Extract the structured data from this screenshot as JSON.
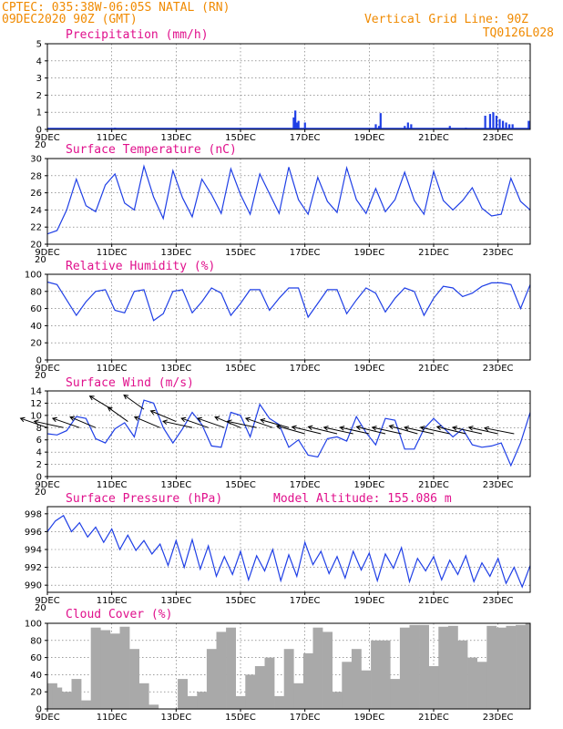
{
  "header": {
    "line1_left": "CPTEC:   035:38W-06:05S  NATAL (RN)",
    "line2_left": "09DEC2020 90Z (GMT)",
    "line2_right": "Vertical Grid Line: 90Z",
    "line3_right": "TQ0126L028"
  },
  "colors": {
    "line": "#1f3fe6",
    "precip_bar": "#1f3fe6",
    "cloud_fill": "#a9a9a9",
    "title": "#e0108c",
    "header": "#f08a00",
    "wind_arrow": "#000000"
  },
  "x_axis": {
    "tick_labels": [
      "9DEC",
      "11DEC",
      "13DEC",
      "15DEC",
      "17DEC",
      "19DEC",
      "21DEC",
      "23DEC"
    ],
    "tick_days": [
      0,
      2,
      4,
      6,
      8,
      10,
      12,
      14
    ],
    "day_range": [
      0,
      15
    ],
    "minor_cut_label": "20"
  },
  "chart_data": [
    {
      "type": "bar",
      "title": "Precipitation (mm/h)",
      "ylim": [
        0,
        5
      ],
      "yticks": [
        0,
        1,
        2,
        3,
        4,
        5
      ],
      "x_days": [
        2.1,
        7.65,
        7.7,
        7.75,
        7.8,
        8.0,
        10.2,
        10.3,
        10.35,
        11.1,
        11.2,
        11.3,
        12.5,
        13.0,
        13.6,
        13.75,
        13.85,
        13.95,
        14.05,
        14.15,
        14.25,
        14.35,
        14.45,
        14.95
      ],
      "values": [
        0.1,
        0.7,
        1.1,
        0.4,
        0.5,
        0.4,
        0.3,
        0.2,
        0.95,
        0.2,
        0.4,
        0.3,
        0.2,
        0.1,
        0.8,
        0.9,
        1.0,
        0.8,
        0.6,
        0.5,
        0.4,
        0.3,
        0.3,
        0.5
      ]
    },
    {
      "type": "line",
      "title": "Surface Temperature (nC)",
      "ylim": [
        20,
        30
      ],
      "yticks": [
        20,
        22,
        24,
        26,
        28,
        30
      ],
      "x_days": [
        0,
        0.3,
        0.6,
        0.9,
        1.2,
        1.5,
        1.8,
        2.1,
        2.4,
        2.7,
        3.0,
        3.3,
        3.6,
        3.9,
        4.2,
        4.5,
        4.8,
        5.1,
        5.4,
        5.7,
        6.0,
        6.3,
        6.6,
        6.9,
        7.2,
        7.5,
        7.8,
        8.1,
        8.4,
        8.7,
        9.0,
        9.3,
        9.6,
        9.9,
        10.2,
        10.5,
        10.8,
        11.1,
        11.4,
        11.7,
        12.0,
        12.3,
        12.6,
        12.9,
        13.2,
        13.5,
        13.8,
        14.1,
        14.4,
        14.7,
        15.0
      ],
      "values": [
        21.2,
        21.6,
        24.0,
        27.6,
        24.5,
        23.8,
        26.9,
        28.2,
        24.8,
        24.0,
        29.1,
        25.5,
        23.0,
        28.6,
        25.4,
        23.2,
        27.6,
        25.8,
        23.6,
        28.8,
        25.8,
        23.5,
        28.2,
        25.9,
        23.6,
        29.0,
        25.2,
        23.5,
        27.8,
        25.0,
        23.7,
        28.9,
        25.2,
        23.6,
        26.5,
        23.8,
        25.2,
        28.4,
        25.1,
        23.5,
        28.5,
        25.1,
        24.0,
        25.1,
        26.6,
        24.2,
        23.3,
        23.5,
        27.7,
        25.0,
        24.0
      ]
    },
    {
      "type": "line",
      "title": "Relative Humidity (%)",
      "ylim": [
        0,
        100
      ],
      "yticks": [
        0,
        20,
        40,
        60,
        80,
        100
      ],
      "x_days": [
        0,
        0.3,
        0.6,
        0.9,
        1.2,
        1.5,
        1.8,
        2.1,
        2.4,
        2.7,
        3.0,
        3.3,
        3.6,
        3.9,
        4.2,
        4.5,
        4.8,
        5.1,
        5.4,
        5.7,
        6.0,
        6.3,
        6.6,
        6.9,
        7.2,
        7.5,
        7.8,
        8.1,
        8.4,
        8.7,
        9.0,
        9.3,
        9.6,
        9.9,
        10.2,
        10.5,
        10.8,
        11.1,
        11.4,
        11.7,
        12.0,
        12.3,
        12.6,
        12.9,
        13.2,
        13.5,
        13.8,
        14.1,
        14.4,
        14.7,
        15.0
      ],
      "values": [
        91,
        88,
        70,
        52,
        68,
        80,
        82,
        58,
        55,
        80,
        82,
        46,
        54,
        80,
        82,
        55,
        68,
        84,
        78,
        52,
        66,
        82,
        82,
        58,
        72,
        84,
        84,
        50,
        66,
        82,
        82,
        54,
        70,
        84,
        78,
        56,
        72,
        84,
        80,
        52,
        72,
        86,
        84,
        74,
        78,
        86,
        90,
        90,
        88,
        60,
        88
      ]
    },
    {
      "type": "line",
      "title": "Surface Wind (m/s)",
      "ylim": [
        0,
        14
      ],
      "yticks": [
        0,
        2,
        4,
        6,
        8,
        10,
        12,
        14
      ],
      "x_days": [
        0,
        0.3,
        0.6,
        0.9,
        1.2,
        1.5,
        1.8,
        2.1,
        2.4,
        2.7,
        3.0,
        3.3,
        3.6,
        3.9,
        4.2,
        4.5,
        4.8,
        5.1,
        5.4,
        5.7,
        6.0,
        6.3,
        6.6,
        6.9,
        7.2,
        7.5,
        7.8,
        8.1,
        8.4,
        8.7,
        9.0,
        9.3,
        9.6,
        9.9,
        10.2,
        10.5,
        10.8,
        11.1,
        11.4,
        11.7,
        12.0,
        12.3,
        12.6,
        12.9,
        13.2,
        13.5,
        13.8,
        14.1,
        14.4,
        14.7,
        15.0
      ],
      "values": [
        7.0,
        6.8,
        7.5,
        9.8,
        9.5,
        6.2,
        5.5,
        7.8,
        8.8,
        6.5,
        12.5,
        12.0,
        8.0,
        5.5,
        7.8,
        10.5,
        8.5,
        5.0,
        4.8,
        10.5,
        10.0,
        6.5,
        11.8,
        9.5,
        8.5,
        4.8,
        6.0,
        3.5,
        3.2,
        6.2,
        6.5,
        5.8,
        9.8,
        7.2,
        5.2,
        9.5,
        9.2,
        4.5,
        4.5,
        7.8,
        9.5,
        8.0,
        6.5,
        7.8,
        5.2,
        4.8,
        5.0,
        5.5,
        1.8,
        5.5,
        10.5
      ],
      "wind_vectors": {
        "x_days": [
          0.0,
          0.5,
          1.0,
          1.5,
          2.0,
          2.5,
          3.0,
          3.5,
          4.0,
          4.5,
          5.0,
          5.5,
          6.0,
          6.5,
          7.0,
          7.5,
          8.0,
          8.5,
          9.0,
          9.5,
          10.0,
          10.5,
          11.0,
          11.5,
          12.0,
          12.5,
          13.0,
          13.5,
          14.0,
          14.5
        ],
        "speed": [
          8,
          8,
          8,
          8,
          11,
          9,
          11,
          8,
          9,
          8,
          8,
          8,
          8,
          8,
          8,
          8,
          7,
          7,
          7,
          7,
          7,
          7,
          7,
          7,
          7,
          7,
          7,
          7,
          7,
          7
        ],
        "dir_deg": [
          120,
          110,
          120,
          125,
          135,
          140,
          140,
          125,
          125,
          110,
          120,
          120,
          125,
          110,
          120,
          115,
          115,
          112,
          112,
          110,
          110,
          112,
          110,
          115,
          110,
          110,
          112,
          110,
          110,
          108
        ]
      }
    },
    {
      "type": "line",
      "title": "Surface Pressure (hPa)",
      "annotation": "Model Altitude: 155.086 m",
      "ylim": [
        989.2,
        998.8
      ],
      "yticks": [
        990,
        992,
        994,
        996,
        998
      ],
      "x_days": [
        0,
        0.25,
        0.5,
        0.75,
        1.0,
        1.25,
        1.5,
        1.75,
        2.0,
        2.25,
        2.5,
        2.75,
        3.0,
        3.25,
        3.5,
        3.75,
        4.0,
        4.25,
        4.5,
        4.75,
        5.0,
        5.25,
        5.5,
        5.75,
        6.0,
        6.25,
        6.5,
        6.75,
        7.0,
        7.25,
        7.5,
        7.75,
        8.0,
        8.25,
        8.5,
        8.75,
        9.0,
        9.25,
        9.5,
        9.75,
        10.0,
        10.25,
        10.5,
        10.75,
        11.0,
        11.25,
        11.5,
        11.75,
        12.0,
        12.25,
        12.5,
        12.75,
        13.0,
        13.25,
        13.5,
        13.75,
        14.0,
        14.25,
        14.5,
        14.75,
        15.0
      ],
      "values": [
        996.0,
        997.2,
        997.8,
        996.0,
        997.0,
        995.4,
        996.5,
        994.8,
        996.3,
        994.0,
        995.6,
        993.9,
        995.0,
        993.5,
        994.6,
        992.2,
        995.0,
        992.0,
        995.1,
        991.8,
        994.4,
        991.0,
        993.2,
        991.2,
        993.8,
        990.6,
        993.3,
        991.6,
        994.0,
        990.5,
        993.4,
        991.0,
        994.8,
        992.3,
        993.8,
        991.3,
        993.2,
        990.8,
        993.8,
        991.7,
        993.6,
        990.5,
        993.5,
        991.9,
        994.2,
        990.4,
        993.0,
        991.6,
        993.2,
        990.6,
        992.8,
        991.2,
        993.3,
        990.4,
        992.5,
        991.0,
        993.0,
        990.2,
        992.0,
        989.8,
        992.2
      ]
    },
    {
      "type": "bar",
      "title": "Cloud Cover (%)",
      "ylim": [
        0,
        100
      ],
      "yticks": [
        0,
        20,
        40,
        60,
        80,
        100
      ],
      "x_days": [
        0,
        0.3,
        0.6,
        0.9,
        1.2,
        1.5,
        1.8,
        2.1,
        2.4,
        2.7,
        3.0,
        3.3,
        3.6,
        3.9,
        4.2,
        4.5,
        4.8,
        5.1,
        5.4,
        5.7,
        6.0,
        6.3,
        6.6,
        6.9,
        7.2,
        7.5,
        7.8,
        8.1,
        8.4,
        8.7,
        9.0,
        9.3,
        9.6,
        9.9,
        10.2,
        10.5,
        10.8,
        11.1,
        11.4,
        11.7,
        12.0,
        12.3,
        12.6,
        12.9,
        13.2,
        13.5,
        13.8,
        14.1,
        14.4,
        14.7,
        15.0
      ],
      "values": [
        30,
        25,
        20,
        35,
        10,
        95,
        92,
        88,
        96,
        70,
        30,
        5,
        0,
        0,
        35,
        15,
        20,
        70,
        90,
        95,
        15,
        40,
        50,
        60,
        15,
        70,
        30,
        65,
        95,
        90,
        20,
        55,
        70,
        45,
        80,
        80,
        35,
        95,
        98,
        98,
        50,
        96,
        97,
        80,
        60,
        55,
        97,
        95,
        97,
        98,
        100
      ]
    }
  ]
}
